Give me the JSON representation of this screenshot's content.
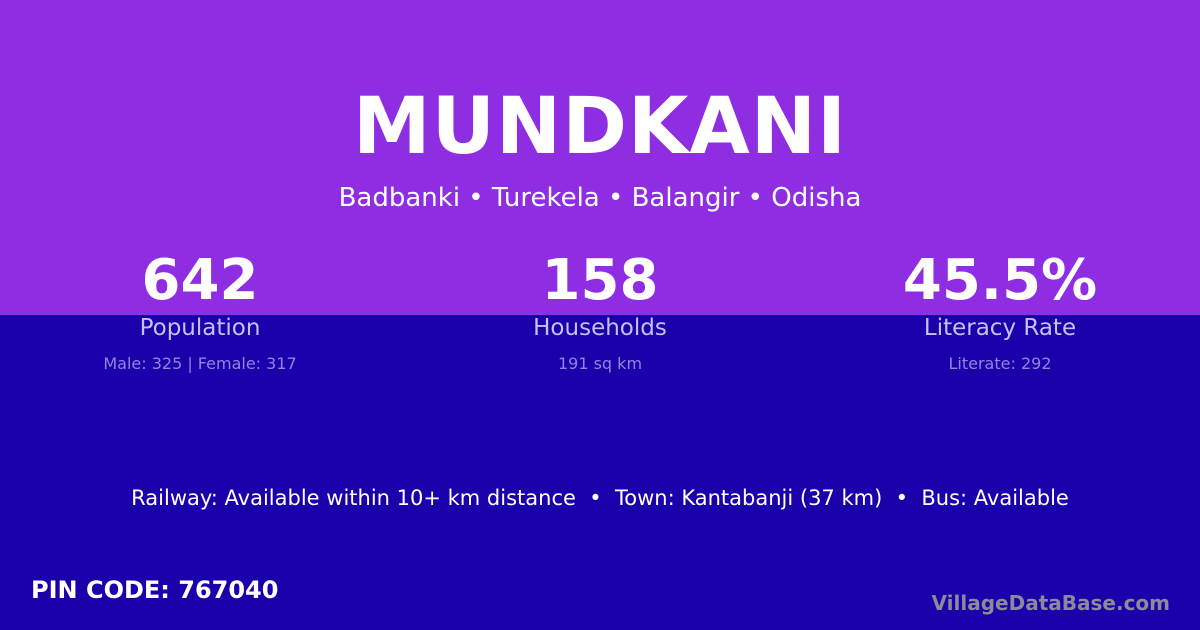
{
  "title": "MUNDKANI",
  "location": "Badbanki • Turekela • Balangir • Odisha",
  "stats": [
    {
      "value": "642",
      "label": "Population",
      "detail": "Male: 325 | Female: 317"
    },
    {
      "value": "158",
      "label": "Households",
      "detail": "191 sq km"
    },
    {
      "value": "45.5%",
      "label": "Literacy Rate",
      "detail": "Literate: 292"
    }
  ],
  "connectivity": "Railway: Available within 10+ km distance  •  Town: Kantabanji (37 km)  •  Bus: Available",
  "pin_code": "PIN CODE: 767040",
  "brand": "VillageDataBase.com",
  "colors": {
    "top": "#8e2de2",
    "bottom": "#1a00aa"
  }
}
